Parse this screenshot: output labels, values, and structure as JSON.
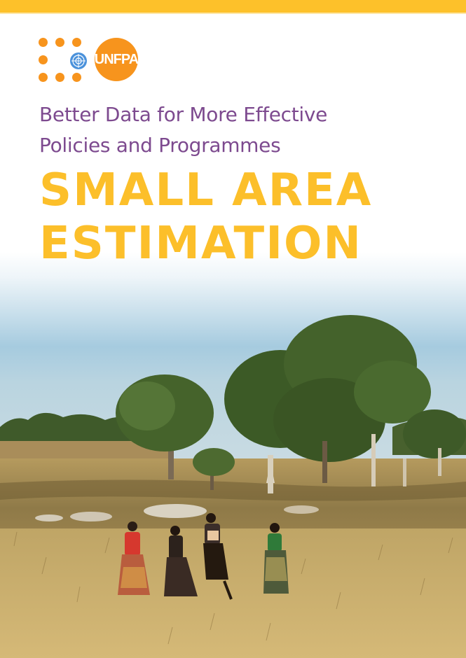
{
  "logo": {
    "text": "UNFPA"
  },
  "cover": {
    "subtitle_line1": "Better Data for More Effective",
    "subtitle_line2": "Policies and Programmes",
    "title_line1": "SMALL AREA",
    "title_line2": "ESTIMATION"
  },
  "colors": {
    "accent_yellow": "#fcbf2a",
    "logo_orange": "#f7941d",
    "subtitle_purple": "#7d4a8f"
  },
  "photo": {
    "icon": "landscape-photo"
  }
}
